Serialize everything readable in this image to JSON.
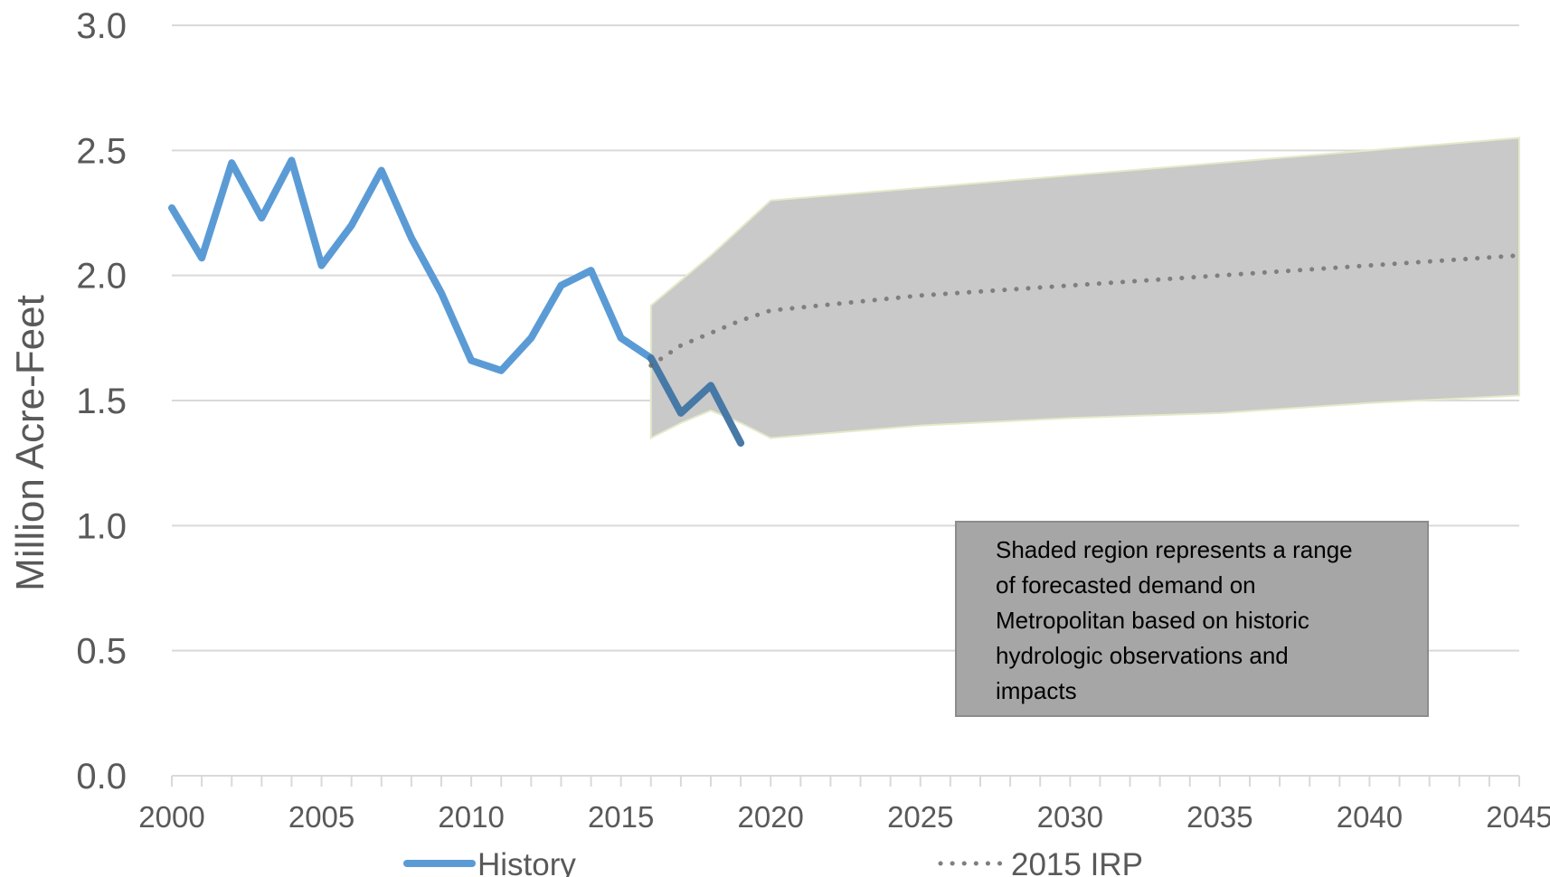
{
  "chart_data": {
    "type": "line",
    "title": "",
    "xlabel": "",
    "ylabel": "Million Acre-Feet",
    "xlim": [
      2000,
      2045
    ],
    "ylim": [
      0,
      3.0
    ],
    "y_ticks": [
      "0.0",
      "0.5",
      "1.0",
      "1.5",
      "2.0",
      "2.5",
      "3.0"
    ],
    "x_ticks": [
      "2000",
      "2005",
      "2010",
      "2015",
      "2020",
      "2025",
      "2030",
      "2035",
      "2040",
      "2045"
    ],
    "grid": "horizontal",
    "legend_position": "bottom",
    "series": [
      {
        "name": "History",
        "style": "solid",
        "color": "#5B9BD5",
        "x": [
          2000,
          2001,
          2002,
          2003,
          2004,
          2005,
          2006,
          2007,
          2008,
          2009,
          2010,
          2011,
          2012,
          2013,
          2014,
          2015,
          2016,
          2017,
          2018,
          2019
        ],
        "y": [
          2.27,
          2.07,
          2.45,
          2.23,
          2.46,
          2.04,
          2.2,
          2.42,
          2.15,
          1.93,
          1.66,
          1.62,
          1.75,
          1.96,
          2.02,
          1.75,
          1.67,
          1.45,
          1.56,
          1.33
        ]
      },
      {
        "name": "2015 IRP",
        "style": "dotted",
        "color": "#7F7F7F",
        "x": [
          2016,
          2017,
          2018,
          2019,
          2020,
          2025,
          2030,
          2035,
          2040,
          2045
        ],
        "y": [
          1.64,
          1.72,
          1.77,
          1.82,
          1.86,
          1.92,
          1.96,
          2.0,
          2.04,
          2.08
        ]
      }
    ],
    "range_band": {
      "color": "#C9C9C9",
      "x": [
        2016,
        2017,
        2018,
        2019,
        2020,
        2025,
        2030,
        2035,
        2040,
        2045
      ],
      "upper": [
        1.88,
        1.98,
        2.08,
        2.19,
        2.3,
        2.35,
        2.4,
        2.45,
        2.5,
        2.55
      ],
      "lower": [
        1.35,
        1.41,
        1.46,
        1.41,
        1.35,
        1.4,
        1.43,
        1.45,
        1.49,
        1.52
      ]
    },
    "annotation": [
      "Shaded region represents a range",
      "of forecasted demand on",
      "Metropolitan based on historic",
      "hydrologic observations and",
      "impacts"
    ]
  },
  "colors": {
    "history": "#5B9BD5",
    "irp": "#7F7F7F",
    "band": "#C9C9C9",
    "grid": "#D9D9D9",
    "text": "#595959"
  }
}
